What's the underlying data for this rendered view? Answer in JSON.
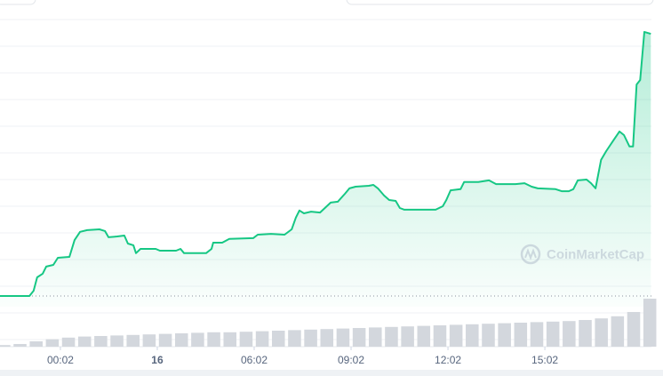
{
  "watermark": "CoinMarketCap",
  "chart_data": [
    {
      "type": "area",
      "series": [
        {
          "name": null,
          "color": "#16c784",
          "x": [
            -1.87,
            -0.96,
            -0.83,
            -0.72,
            -0.55,
            -0.44,
            -0.22,
            -0.08,
            0.28,
            0.44,
            0.61,
            0.83,
            1.21,
            1.38,
            1.49,
            1.76,
            1.98,
            2.09,
            2.26,
            2.34,
            2.48,
            2.95,
            3.08,
            3.58,
            3.72,
            3.83,
            4.51,
            4.68,
            4.73,
            5.01,
            5.23,
            5.97,
            6.11,
            6.52,
            6.94,
            7.16,
            7.29,
            7.4,
            7.54,
            7.76,
            8.04,
            8.37,
            8.59,
            8.81,
            8.95,
            9.14,
            9.55,
            9.69,
            9.83,
            10.02,
            10.18,
            10.38,
            10.51,
            10.65,
            11.62,
            11.84,
            11.95,
            12.08,
            12.39,
            12.5,
            12.94,
            13.27,
            13.49,
            14.09,
            14.37,
            14.59,
            14.78,
            15.33,
            15.52,
            15.74,
            15.88,
            16.02,
            16.29,
            16.43,
            16.57,
            16.74,
            16.9,
            17.12,
            17.31,
            17.45,
            17.62,
            17.73,
            17.84,
            17.95,
            18.08,
            18.28
          ],
          "values": [
            3.75,
            3.75,
            5.6,
            10.3,
            11.6,
            14.1,
            14.7,
            17.2,
            17.5,
            23.4,
            26.3,
            26.9,
            27.2,
            26.6,
            24.4,
            24.7,
            25,
            22.2,
            21.6,
            18.8,
            20.3,
            20.3,
            19.7,
            19.7,
            20.3,
            18.8,
            18.8,
            20.3,
            22.5,
            22.5,
            23.8,
            24.1,
            25.3,
            25.6,
            25.3,
            27.2,
            31.3,
            33.8,
            32.8,
            33.4,
            33.1,
            36.6,
            36.9,
            39.7,
            41.6,
            42.2,
            42.5,
            42.8,
            41.6,
            39.1,
            37.5,
            37.2,
            34.7,
            34.1,
            34.1,
            35.3,
            37.5,
            40.9,
            41.3,
            43.8,
            43.8,
            44.4,
            43.1,
            43.1,
            43.4,
            42.2,
            41.6,
            41.3,
            40.6,
            40.6,
            41.3,
            44.4,
            44.7,
            43.4,
            41.6,
            51.6,
            54.7,
            58.4,
            61.6,
            60.3,
            56.3,
            56.3,
            78.1,
            79.7,
            96.6,
            95.9
          ]
        }
      ],
      "xlim": [
        -1.87,
        18.3
      ],
      "ylim": [
        0,
        100
      ],
      "xticks": [
        {
          "value": 0,
          "label": "00:02"
        },
        {
          "value": 3,
          "label": "16"
        },
        {
          "value": 6,
          "label": "06:02"
        },
        {
          "value": 9,
          "label": "09:02"
        },
        {
          "value": 12,
          "label": "12:02"
        },
        {
          "value": 15,
          "label": "15:02"
        }
      ]
    },
    {
      "type": "bar",
      "color": "#d3d7dd",
      "xlim": [
        -1.87,
        18.3
      ],
      "ylim": [
        0,
        100
      ],
      "x": [
        -1.75,
        -1.25,
        -0.75,
        -0.25,
        0.25,
        0.75,
        1.25,
        1.75,
        2.25,
        2.75,
        3.25,
        3.75,
        4.25,
        4.75,
        5.25,
        5.75,
        6.25,
        6.75,
        7.25,
        7.75,
        8.25,
        8.75,
        9.25,
        9.75,
        10.25,
        10.75,
        11.25,
        11.75,
        12.25,
        12.75,
        13.25,
        13.75,
        14.25,
        14.75,
        15.25,
        15.75,
        16.25,
        16.75,
        17.25,
        17.75,
        18.25
      ],
      "values": [
        3,
        5,
        10,
        14,
        17,
        19,
        20,
        21,
        22,
        23,
        24,
        25,
        26,
        27,
        27,
        28,
        29,
        30,
        31,
        32,
        33,
        34,
        35,
        36,
        37,
        38,
        39,
        40,
        41,
        42,
        43,
        44,
        45,
        46,
        47,
        48,
        50,
        53,
        57,
        65,
        90
      ]
    }
  ]
}
